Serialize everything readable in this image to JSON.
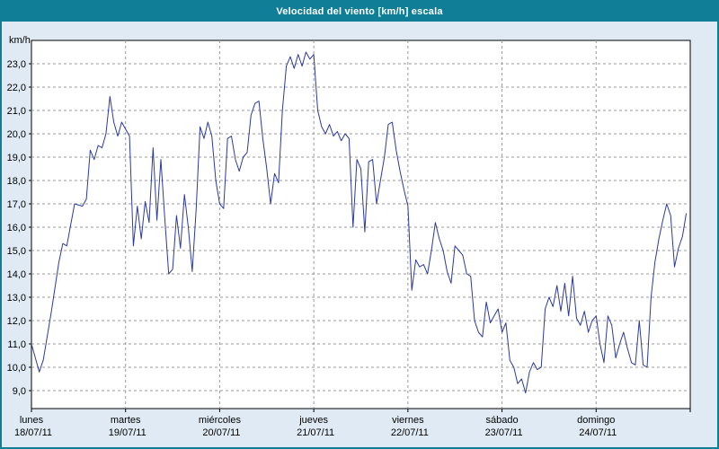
{
  "window": {
    "title": "Velocidad del viento [km/h] escala"
  },
  "theme": {
    "header_bg": "#0f7e96",
    "header_text": "#ffffff",
    "page_bg": "#dfeaf4",
    "plot_bg": "#ffffff",
    "plot_border": "#000000",
    "grid_color": "#999999",
    "line_color": "#2b3a9e",
    "text_color": "#000000"
  },
  "chart_data": {
    "type": "line",
    "title": "Velocidad del viento [km/h] escala",
    "ylabel": "km/h",
    "y_unit_label": "km/h",
    "ylim": [
      9,
      23
    ],
    "y_tick_step": 1.0,
    "y_tick_labels": [
      "23,0",
      "22,0",
      "21,0",
      "20,0",
      "19,0",
      "18,0",
      "17,0",
      "16,0",
      "15,0",
      "14,0",
      "13,0",
      "12,0",
      "11,0",
      "10,0",
      "9,0"
    ],
    "grid": "dashed",
    "legend": "none",
    "x_unit": "hours",
    "x_range_hours": [
      0,
      168
    ],
    "days": [
      {
        "name": "lunes",
        "date": "18/07/11"
      },
      {
        "name": "martes",
        "date": "19/07/11"
      },
      {
        "name": "miércoles",
        "date": "20/07/11"
      },
      {
        "name": "jueves",
        "date": "21/07/11"
      },
      {
        "name": "viernes",
        "date": "22/07/11"
      },
      {
        "name": "sábado",
        "date": "23/07/11"
      },
      {
        "name": "domingo",
        "date": "24/07/11"
      }
    ],
    "series": [
      {
        "name": "Velocidad del viento",
        "unit": "km/h",
        "points": [
          [
            0,
            11.0
          ],
          [
            2,
            9.8
          ],
          [
            3,
            10.3
          ],
          [
            5,
            12.3
          ],
          [
            7,
            14.5
          ],
          [
            8,
            15.3
          ],
          [
            9,
            15.2
          ],
          [
            11,
            17.0
          ],
          [
            13,
            16.9
          ],
          [
            14,
            17.2
          ],
          [
            15,
            19.3
          ],
          [
            16,
            18.9
          ],
          [
            17,
            19.5
          ],
          [
            18,
            19.4
          ],
          [
            19,
            20.0
          ],
          [
            20,
            21.6
          ],
          [
            21,
            20.5
          ],
          [
            22,
            19.9
          ],
          [
            23,
            20.5
          ],
          [
            24,
            20.2
          ],
          [
            25,
            19.9
          ],
          [
            26,
            15.2
          ],
          [
            27,
            16.9
          ],
          [
            28,
            15.5
          ],
          [
            29,
            17.1
          ],
          [
            30,
            16.2
          ],
          [
            31,
            19.4
          ],
          [
            32,
            16.3
          ],
          [
            33,
            18.9
          ],
          [
            34,
            16.4
          ],
          [
            35,
            14.0
          ],
          [
            36,
            14.2
          ],
          [
            37,
            16.5
          ],
          [
            38,
            15.1
          ],
          [
            39,
            17.4
          ],
          [
            40,
            16.0
          ],
          [
            41,
            14.1
          ],
          [
            42,
            16.8
          ],
          [
            43,
            20.3
          ],
          [
            44,
            19.8
          ],
          [
            45,
            20.5
          ],
          [
            46,
            19.9
          ],
          [
            47,
            18.0
          ],
          [
            48,
            17.0
          ],
          [
            49,
            16.8
          ],
          [
            50,
            19.8
          ],
          [
            51,
            19.9
          ],
          [
            52,
            18.9
          ],
          [
            53,
            18.4
          ],
          [
            54,
            19.0
          ],
          [
            55,
            19.2
          ],
          [
            56,
            20.8
          ],
          [
            57,
            21.3
          ],
          [
            58,
            21.4
          ],
          [
            59,
            19.8
          ],
          [
            60,
            18.5
          ],
          [
            61,
            17.0
          ],
          [
            62,
            18.3
          ],
          [
            63,
            17.9
          ],
          [
            64,
            21.0
          ],
          [
            65,
            22.9
          ],
          [
            66,
            23.3
          ],
          [
            67,
            22.8
          ],
          [
            68,
            23.4
          ],
          [
            69,
            22.9
          ],
          [
            70,
            23.5
          ],
          [
            71,
            23.2
          ],
          [
            72,
            23.4
          ],
          [
            73,
            21.0
          ],
          [
            74,
            20.3
          ],
          [
            75,
            20.0
          ],
          [
            76,
            20.4
          ],
          [
            77,
            19.9
          ],
          [
            78,
            20.1
          ],
          [
            79,
            19.7
          ],
          [
            80,
            20.0
          ],
          [
            81,
            19.8
          ],
          [
            82,
            16.0
          ],
          [
            83,
            18.9
          ],
          [
            84,
            18.5
          ],
          [
            85,
            15.8
          ],
          [
            86,
            18.8
          ],
          [
            87,
            18.9
          ],
          [
            88,
            17.0
          ],
          [
            89,
            18.0
          ],
          [
            90,
            19.0
          ],
          [
            91,
            20.4
          ],
          [
            92,
            20.5
          ],
          [
            93,
            19.3
          ],
          [
            94,
            18.4
          ],
          [
            95,
            17.6
          ],
          [
            96,
            16.9
          ],
          [
            97,
            13.3
          ],
          [
            98,
            14.6
          ],
          [
            99,
            14.3
          ],
          [
            100,
            14.4
          ],
          [
            101,
            14.0
          ],
          [
            102,
            15.0
          ],
          [
            103,
            16.2
          ],
          [
            104,
            15.5
          ],
          [
            105,
            15.0
          ],
          [
            106,
            14.1
          ],
          [
            107,
            13.6
          ],
          [
            108,
            15.2
          ],
          [
            109,
            15.0
          ],
          [
            110,
            14.8
          ],
          [
            111,
            14.0
          ],
          [
            112,
            13.9
          ],
          [
            113,
            12.0
          ],
          [
            114,
            11.5
          ],
          [
            115,
            11.3
          ],
          [
            116,
            12.8
          ],
          [
            117,
            11.9
          ],
          [
            118,
            12.2
          ],
          [
            119,
            12.5
          ],
          [
            120,
            11.5
          ],
          [
            121,
            11.9
          ],
          [
            122,
            10.3
          ],
          [
            123,
            10.0
          ],
          [
            124,
            9.3
          ],
          [
            125,
            9.5
          ],
          [
            126,
            8.9
          ],
          [
            127,
            9.8
          ],
          [
            128,
            10.2
          ],
          [
            129,
            9.9
          ],
          [
            130,
            10.0
          ],
          [
            131,
            12.5
          ],
          [
            132,
            13.0
          ],
          [
            133,
            12.6
          ],
          [
            134,
            13.5
          ],
          [
            135,
            12.4
          ],
          [
            136,
            13.6
          ],
          [
            137,
            12.2
          ],
          [
            138,
            13.9
          ],
          [
            139,
            12.1
          ],
          [
            140,
            11.8
          ],
          [
            141,
            12.4
          ],
          [
            142,
            11.5
          ],
          [
            143,
            12.0
          ],
          [
            144,
            12.2
          ],
          [
            145,
            11.0
          ],
          [
            146,
            10.2
          ],
          [
            147,
            12.2
          ],
          [
            148,
            11.8
          ],
          [
            149,
            10.4
          ],
          [
            150,
            11.0
          ],
          [
            151,
            11.5
          ],
          [
            152,
            10.8
          ],
          [
            153,
            10.2
          ],
          [
            154,
            10.1
          ],
          [
            155,
            12.0
          ],
          [
            156,
            10.1
          ],
          [
            157,
            10.0
          ],
          [
            158,
            13.0
          ],
          [
            159,
            14.5
          ],
          [
            160,
            15.5
          ],
          [
            161,
            16.3
          ],
          [
            162,
            17.0
          ],
          [
            163,
            16.5
          ],
          [
            164,
            14.3
          ],
          [
            165,
            15.1
          ],
          [
            166,
            15.6
          ],
          [
            167,
            16.6
          ]
        ]
      }
    ]
  }
}
